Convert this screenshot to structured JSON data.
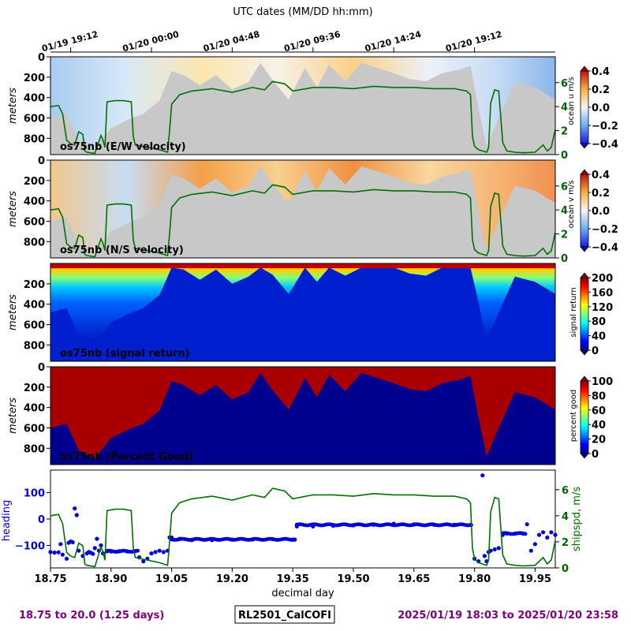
{
  "top_axis": {
    "title": "UTC dates (MM/DD hh:mm)",
    "ticks": [
      {
        "label": "01/19 19:12",
        "x": 18.8
      },
      {
        "label": "01/20 00:00",
        "x": 19.0
      },
      {
        "label": "01/20 04:48",
        "x": 19.2
      },
      {
        "label": "01/20 09:36",
        "x": 19.4
      },
      {
        "label": "01/20 14:24",
        "x": 19.6
      },
      {
        "label": "01/20 19:12",
        "x": 19.8
      }
    ]
  },
  "bottom_axis": {
    "title": "decimal day",
    "ticks": [
      "18.75",
      "18.90",
      "19.05",
      "19.20",
      "19.35",
      "19.50",
      "19.65",
      "19.80",
      "19.95"
    ],
    "xlim": [
      18.75,
      20.0
    ]
  },
  "panels": [
    {
      "label": "os75nb (E/W velocity)",
      "ylabel": "meters",
      "yticks": [
        "0",
        "200",
        "400",
        "600",
        "800"
      ],
      "right_ylabel": "ocean u m/s",
      "right_ticks": [
        "0",
        "2",
        "4",
        "6"
      ],
      "cbar_ticks": [
        "0.4",
        "0.2",
        "0.0",
        "−0.2",
        "−0.4"
      ],
      "cbar_label": "ocean u m/s",
      "cmap": "diverging"
    },
    {
      "label": "os75nb (N/S velocity)",
      "ylabel": "meters",
      "yticks": [
        "0",
        "200",
        "400",
        "600",
        "800"
      ],
      "right_ylabel": "ocean v m/s",
      "right_ticks": [
        "0",
        "2",
        "4",
        "6"
      ],
      "cbar_ticks": [
        "0.4",
        "0.2",
        "0.0",
        "−0.2",
        "−0.4"
      ],
      "cbar_label": "ocean v m/s",
      "cmap": "diverging"
    },
    {
      "label": "os75nb (signal return)",
      "ylabel": "meters",
      "yticks": [
        "200",
        "400",
        "600",
        "800"
      ],
      "cbar_ticks": [
        "200",
        "160",
        "120",
        "80",
        "40",
        "0"
      ],
      "cbar_label": "signal return",
      "cmap": "jet"
    },
    {
      "label": "os75nb (Percent Good)",
      "ylabel": "meters",
      "yticks": [
        "0",
        "200",
        "400",
        "600",
        "800"
      ],
      "cbar_ticks": [
        "100",
        "80",
        "60",
        "40",
        "20",
        "0"
      ],
      "cbar_label": "percent good",
      "cmap": "jet"
    }
  ],
  "bottom_panel": {
    "left_label": "heading",
    "left_ticks": [
      "100",
      "0",
      "−100"
    ],
    "right_label": "shipspd, m/s",
    "right_ticks": [
      "0",
      "2",
      "4",
      "6"
    ]
  },
  "footer": {
    "left": "18.75 to 20.0 (1.25 days)",
    "center": "RL2501_CalCOFI",
    "right": "2025/01/19 18:03 to 2025/01/20 23:58"
  },
  "colors": {
    "speed": "#007000",
    "heading": "#0000dd",
    "footer": "#800080",
    "nodata": "#c8c8c8"
  },
  "chart_data": [
    {
      "type": "line",
      "name": "ship speed",
      "ylabel": "shipspd, m/s",
      "ylim": [
        0,
        7.5
      ],
      "x": [
        18.75,
        18.77,
        18.78,
        18.79,
        18.8,
        18.81,
        18.82,
        18.83,
        18.835,
        18.84,
        18.86,
        18.875,
        18.88,
        18.885,
        18.89,
        18.91,
        18.93,
        18.95,
        18.955,
        18.96,
        18.99,
        19.02,
        19.04,
        19.045,
        19.05,
        19.07,
        19.1,
        19.15,
        19.2,
        19.25,
        19.28,
        19.3,
        19.33,
        19.35,
        19.4,
        19.45,
        19.5,
        19.55,
        19.6,
        19.65,
        19.7,
        19.75,
        19.78,
        19.79,
        19.795,
        19.8,
        19.81,
        19.82,
        19.83,
        19.835,
        19.84,
        19.85,
        19.86,
        19.87,
        19.88,
        19.9,
        19.92,
        19.95,
        19.97,
        19.98,
        19.99,
        20.0
      ],
      "y": [
        4.0,
        4.1,
        3.4,
        1.2,
        0.9,
        0.8,
        1.9,
        1.7,
        0.3,
        0.2,
        0.1,
        1.6,
        1.2,
        0.6,
        4.4,
        4.5,
        4.5,
        4.4,
        1.5,
        0.8,
        0.6,
        0.4,
        0.2,
        2.0,
        4.2,
        5.0,
        5.3,
        5.5,
        5.2,
        5.6,
        5.4,
        6.1,
        5.9,
        5.3,
        5.6,
        5.6,
        5.5,
        5.7,
        5.6,
        5.6,
        5.5,
        5.5,
        5.3,
        5.0,
        1.5,
        0.7,
        0.4,
        0.3,
        0.2,
        0.6,
        4.3,
        5.4,
        5.3,
        1.0,
        0.3,
        0.2,
        0.15,
        0.2,
        0.8,
        0.3,
        0.6,
        2.1
      ]
    },
    {
      "type": "scatter",
      "name": "heading",
      "ylabel": "heading",
      "ylim": [
        -185,
        185
      ],
      "points": [
        [
          18.75,
          -125
        ],
        [
          18.76,
          -127
        ],
        [
          18.77,
          -126
        ],
        [
          18.775,
          -95
        ],
        [
          18.78,
          -135
        ],
        [
          18.79,
          -150
        ],
        [
          18.795,
          -90
        ],
        [
          18.8,
          -85
        ],
        [
          18.805,
          -88
        ],
        [
          18.81,
          40
        ],
        [
          18.815,
          15
        ],
        [
          18.82,
          -120
        ],
        [
          18.83,
          -140
        ],
        [
          18.84,
          -130
        ],
        [
          18.845,
          -125
        ],
        [
          18.85,
          -128
        ],
        [
          18.855,
          -132
        ],
        [
          18.86,
          -110
        ],
        [
          18.865,
          -75
        ],
        [
          18.87,
          -120
        ],
        [
          18.875,
          -100
        ],
        [
          18.88,
          -130
        ],
        [
          18.89,
          -122
        ],
        [
          18.9,
          -123
        ],
        [
          18.92,
          -122
        ],
        [
          18.94,
          -123
        ],
        [
          18.96,
          -121
        ],
        [
          18.97,
          -145
        ],
        [
          18.98,
          -160
        ],
        [
          18.99,
          -150
        ],
        [
          19.0,
          -130
        ],
        [
          19.01,
          -125
        ],
        [
          19.02,
          -120
        ],
        [
          19.03,
          -125
        ],
        [
          19.04,
          -120
        ],
        [
          19.045,
          -70
        ],
        [
          19.05,
          -70
        ],
        [
          19.07,
          -75
        ],
        [
          19.1,
          -80
        ],
        [
          19.15,
          -80
        ],
        [
          19.2,
          -78
        ],
        [
          19.25,
          -78
        ],
        [
          19.3,
          -76
        ],
        [
          19.35,
          -78
        ],
        [
          19.355,
          -78
        ],
        [
          19.36,
          -28
        ],
        [
          19.4,
          -28
        ],
        [
          19.45,
          -26
        ],
        [
          19.5,
          -24
        ],
        [
          19.55,
          -22
        ],
        [
          19.6,
          -18
        ],
        [
          19.65,
          -20
        ],
        [
          19.7,
          -22
        ],
        [
          19.75,
          -22
        ],
        [
          19.79,
          -22
        ],
        [
          19.8,
          -150
        ],
        [
          19.81,
          -160
        ],
        [
          19.82,
          165
        ],
        [
          19.825,
          -140
        ],
        [
          19.83,
          -160
        ],
        [
          19.835,
          -125
        ],
        [
          19.84,
          -120
        ],
        [
          19.85,
          -115
        ],
        [
          19.86,
          -110
        ],
        [
          19.87,
          -60
        ],
        [
          19.88,
          -55
        ],
        [
          19.9,
          -55
        ],
        [
          19.92,
          -55
        ],
        [
          19.93,
          -20
        ],
        [
          19.94,
          -120
        ],
        [
          19.95,
          -95
        ],
        [
          19.96,
          -60
        ],
        [
          19.97,
          -50
        ],
        [
          19.98,
          -70
        ],
        [
          19.99,
          -50
        ],
        [
          20.0,
          -60
        ]
      ]
    }
  ]
}
